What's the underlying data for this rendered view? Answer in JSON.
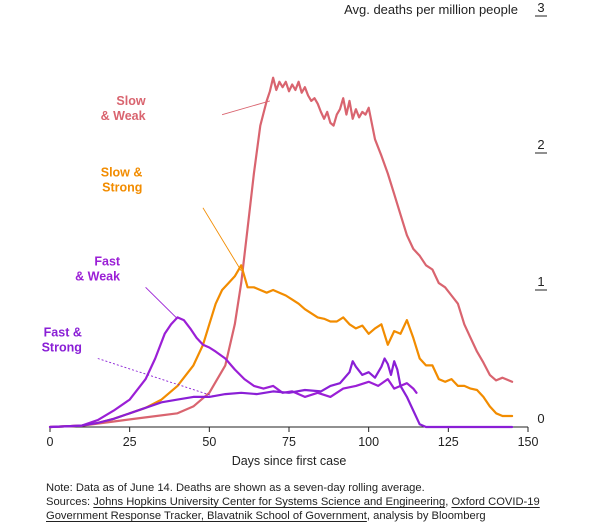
{
  "chart_data": {
    "type": "line",
    "ylabel": "Avg. deaths per million people",
    "xlabel": "Days since first case",
    "xlim": [
      0,
      150
    ],
    "ylim": [
      0,
      3
    ],
    "x_ticks": [
      0,
      25,
      50,
      75,
      100,
      125,
      150
    ],
    "y_ticks": [
      0,
      1,
      2,
      3
    ],
    "series": [
      {
        "name": "Slow & Weak",
        "label_lines": [
          "Slow",
          "& Weak"
        ],
        "color": "#d9646f",
        "points": [
          [
            0,
            0
          ],
          [
            10,
            0.01
          ],
          [
            20,
            0.04
          ],
          [
            30,
            0.07
          ],
          [
            40,
            0.1
          ],
          [
            45,
            0.15
          ],
          [
            50,
            0.25
          ],
          [
            55,
            0.45
          ],
          [
            58,
            0.75
          ],
          [
            60,
            1.05
          ],
          [
            62,
            1.45
          ],
          [
            64,
            1.85
          ],
          [
            66,
            2.2
          ],
          [
            68,
            2.38
          ],
          [
            69,
            2.45
          ],
          [
            70,
            2.55
          ],
          [
            71,
            2.46
          ],
          [
            72,
            2.52
          ],
          [
            73,
            2.48
          ],
          [
            74,
            2.52
          ],
          [
            75,
            2.45
          ],
          [
            76,
            2.5
          ],
          [
            77,
            2.46
          ],
          [
            78,
            2.52
          ],
          [
            79,
            2.44
          ],
          [
            80,
            2.48
          ],
          [
            81,
            2.42
          ],
          [
            82,
            2.38
          ],
          [
            83,
            2.4
          ],
          [
            84,
            2.36
          ],
          [
            85,
            2.3
          ],
          [
            86,
            2.25
          ],
          [
            87,
            2.3
          ],
          [
            88,
            2.22
          ],
          [
            89,
            2.2
          ],
          [
            90,
            2.28
          ],
          [
            91,
            2.32
          ],
          [
            92,
            2.4
          ],
          [
            93,
            2.28
          ],
          [
            94,
            2.38
          ],
          [
            95,
            2.25
          ],
          [
            96,
            2.32
          ],
          [
            97,
            2.26
          ],
          [
            98,
            2.3
          ],
          [
            99,
            2.28
          ],
          [
            100,
            2.33
          ],
          [
            102,
            2.1
          ],
          [
            104,
            1.98
          ],
          [
            106,
            1.85
          ],
          [
            108,
            1.7
          ],
          [
            110,
            1.55
          ],
          [
            112,
            1.4
          ],
          [
            114,
            1.3
          ],
          [
            116,
            1.25
          ],
          [
            118,
            1.18
          ],
          [
            120,
            1.15
          ],
          [
            122,
            1.05
          ],
          [
            124,
            1.02
          ],
          [
            126,
            0.96
          ],
          [
            128,
            0.9
          ],
          [
            130,
            0.75
          ],
          [
            132,
            0.65
          ],
          [
            134,
            0.55
          ],
          [
            136,
            0.47
          ],
          [
            138,
            0.38
          ],
          [
            140,
            0.34
          ],
          [
            142,
            0.36
          ],
          [
            145,
            0.33
          ]
        ]
      },
      {
        "name": "Slow & Strong",
        "label_lines": [
          "Slow &",
          "Strong"
        ],
        "color": "#f28c00",
        "points": [
          [
            0,
            0
          ],
          [
            10,
            0.01
          ],
          [
            15,
            0.03
          ],
          [
            20,
            0.06
          ],
          [
            25,
            0.1
          ],
          [
            30,
            0.14
          ],
          [
            35,
            0.2
          ],
          [
            40,
            0.3
          ],
          [
            45,
            0.45
          ],
          [
            48,
            0.6
          ],
          [
            50,
            0.75
          ],
          [
            52,
            0.9
          ],
          [
            54,
            1.0
          ],
          [
            56,
            1.05
          ],
          [
            58,
            1.1
          ],
          [
            60,
            1.18
          ],
          [
            62,
            1.02
          ],
          [
            64,
            1.02
          ],
          [
            66,
            1.0
          ],
          [
            68,
            0.98
          ],
          [
            70,
            1.0
          ],
          [
            72,
            0.98
          ],
          [
            74,
            0.96
          ],
          [
            76,
            0.93
          ],
          [
            78,
            0.9
          ],
          [
            80,
            0.86
          ],
          [
            82,
            0.83
          ],
          [
            84,
            0.8
          ],
          [
            86,
            0.79
          ],
          [
            88,
            0.77
          ],
          [
            90,
            0.77
          ],
          [
            92,
            0.8
          ],
          [
            94,
            0.75
          ],
          [
            96,
            0.72
          ],
          [
            98,
            0.74
          ],
          [
            100,
            0.68
          ],
          [
            102,
            0.72
          ],
          [
            104,
            0.75
          ],
          [
            106,
            0.6
          ],
          [
            108,
            0.7
          ],
          [
            110,
            0.68
          ],
          [
            112,
            0.78
          ],
          [
            114,
            0.65
          ],
          [
            116,
            0.5
          ],
          [
            118,
            0.45
          ],
          [
            120,
            0.45
          ],
          [
            122,
            0.35
          ],
          [
            124,
            0.33
          ],
          [
            126,
            0.35
          ],
          [
            128,
            0.3
          ],
          [
            130,
            0.3
          ],
          [
            132,
            0.28
          ],
          [
            134,
            0.27
          ],
          [
            136,
            0.22
          ],
          [
            138,
            0.15
          ],
          [
            140,
            0.1
          ],
          [
            142,
            0.08
          ],
          [
            145,
            0.08
          ]
        ]
      },
      {
        "name": "Fast & Weak",
        "label_lines": [
          "Fast",
          "& Weak"
        ],
        "color": "#9b1fd6",
        "points": [
          [
            0,
            0
          ],
          [
            10,
            0.01
          ],
          [
            15,
            0.05
          ],
          [
            20,
            0.12
          ],
          [
            25,
            0.2
          ],
          [
            30,
            0.35
          ],
          [
            33,
            0.5
          ],
          [
            36,
            0.68
          ],
          [
            38,
            0.75
          ],
          [
            40,
            0.8
          ],
          [
            42,
            0.78
          ],
          [
            44,
            0.72
          ],
          [
            46,
            0.65
          ],
          [
            48,
            0.6
          ],
          [
            50,
            0.58
          ],
          [
            52,
            0.55
          ],
          [
            55,
            0.5
          ],
          [
            58,
            0.42
          ],
          [
            61,
            0.35
          ],
          [
            64,
            0.3
          ],
          [
            67,
            0.28
          ],
          [
            70,
            0.3
          ],
          [
            73,
            0.25
          ],
          [
            76,
            0.26
          ],
          [
            80,
            0.22
          ],
          [
            84,
            0.25
          ],
          [
            88,
            0.22
          ],
          [
            92,
            0.28
          ],
          [
            96,
            0.3
          ],
          [
            100,
            0.33
          ],
          [
            103,
            0.3
          ],
          [
            106,
            0.35
          ],
          [
            108,
            0.28
          ],
          [
            110,
            0.3
          ],
          [
            112,
            0.32
          ],
          [
            114,
            0.28
          ],
          [
            115,
            0.25
          ]
        ]
      },
      {
        "name": "Fast & Strong",
        "label_lines": [
          "Fast &",
          "Strong"
        ],
        "color": "#8a1fd6",
        "points": [
          [
            0,
            0
          ],
          [
            10,
            0.01
          ],
          [
            15,
            0.03
          ],
          [
            20,
            0.06
          ],
          [
            25,
            0.1
          ],
          [
            30,
            0.14
          ],
          [
            35,
            0.18
          ],
          [
            40,
            0.2
          ],
          [
            45,
            0.22
          ],
          [
            50,
            0.22
          ],
          [
            55,
            0.24
          ],
          [
            60,
            0.25
          ],
          [
            65,
            0.24
          ],
          [
            70,
            0.26
          ],
          [
            75,
            0.25
          ],
          [
            80,
            0.27
          ],
          [
            85,
            0.26
          ],
          [
            88,
            0.3
          ],
          [
            91,
            0.32
          ],
          [
            94,
            0.4
          ],
          [
            95,
            0.48
          ],
          [
            96,
            0.44
          ],
          [
            98,
            0.38
          ],
          [
            100,
            0.4
          ],
          [
            102,
            0.36
          ],
          [
            104,
            0.44
          ],
          [
            105,
            0.5
          ],
          [
            106,
            0.46
          ],
          [
            107,
            0.38
          ],
          [
            108,
            0.48
          ],
          [
            109,
            0.42
          ],
          [
            110,
            0.3
          ],
          [
            112,
            0.22
          ],
          [
            114,
            0.12
          ],
          [
            116,
            0.02
          ],
          [
            118,
            0
          ],
          [
            130,
            0
          ],
          [
            145,
            0
          ]
        ]
      }
    ]
  },
  "footnote": {
    "line1": "Note: Data as of June 14. Deaths are shown as a seven-day rolling average.",
    "sources_prefix": "Sources: ",
    "source_a": "Johns Hopkins University Center for Systems Science and Engineering",
    "sep1": ", ",
    "source_b": "Oxford COVID-19 Government Response Tracker, Blavatnik School of Government",
    "sep2": ", analysis by Bloomberg"
  }
}
